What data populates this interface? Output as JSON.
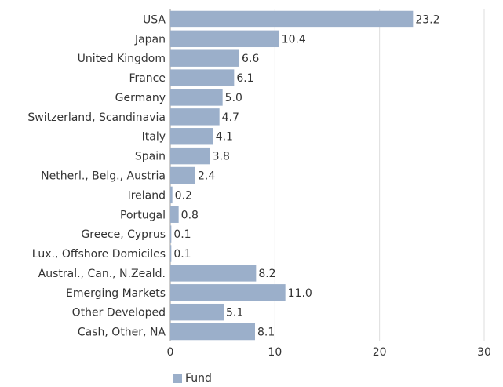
{
  "chart_data": {
    "type": "bar",
    "orientation": "horizontal",
    "categories": [
      "USA",
      "Japan",
      "United Kingdom",
      "France",
      "Germany",
      "Switzerland, Scandinavia",
      "Italy",
      "Spain",
      "Netherl., Belg., Austria",
      "Ireland",
      "Portugal",
      "Greece, Cyprus",
      "Lux., Offshore Domiciles",
      "Austral., Can., N.Zeald.",
      "Emerging Markets",
      "Other Developed",
      "Cash, Other, NA"
    ],
    "series": [
      {
        "name": "Fund",
        "color": "#9bafca",
        "values": [
          23.2,
          10.4,
          6.6,
          6.1,
          5.0,
          4.7,
          4.1,
          3.8,
          2.4,
          0.2,
          0.8,
          0.1,
          0.1,
          8.2,
          11.0,
          5.1,
          8.1
        ],
        "value_labels": [
          "23.2",
          "10.4",
          "6.6",
          "6.1",
          "5.0",
          "4.7",
          "4.1",
          "3.8",
          "2.4",
          "0.2",
          "0.8",
          "0.1",
          "0.1",
          "8.2",
          "11.0",
          "5.1",
          "8.1"
        ]
      }
    ],
    "xlim": [
      0,
      30
    ],
    "xticks": [
      0,
      10,
      20,
      30
    ],
    "grid": true,
    "legend": "bottom"
  }
}
